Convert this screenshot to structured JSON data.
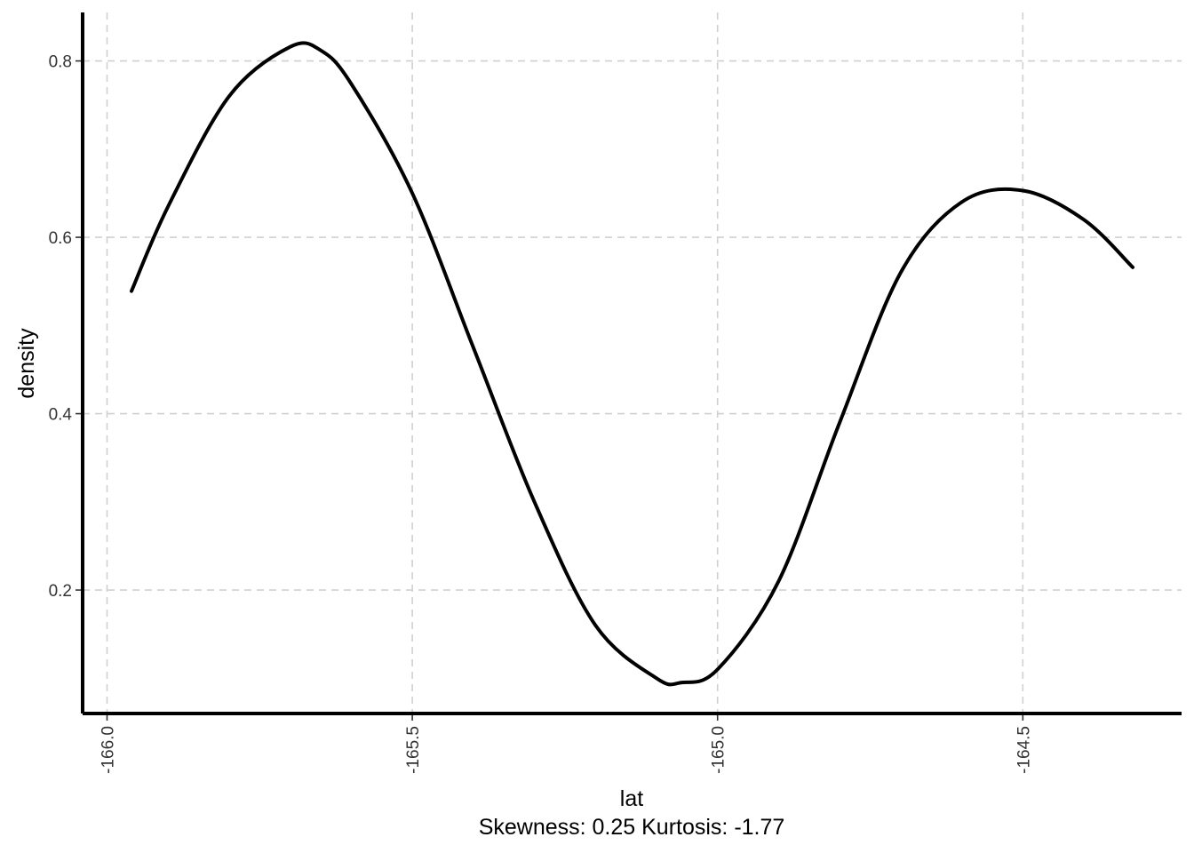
{
  "chart_data": {
    "type": "line",
    "xlabel": "lat",
    "ylabel": "density",
    "caption": "Skewness: 0.25 Kurtosis: -1.77",
    "xlim": [
      -166.04,
      -164.24
    ],
    "ylim": [
      0.06,
      0.855
    ],
    "x_ticks": [
      -166.0,
      -165.5,
      -165.0,
      -164.5
    ],
    "x_tick_labels": [
      "-166.0",
      "-165.5",
      "-165.0",
      "-164.5"
    ],
    "y_ticks": [
      0.2,
      0.4,
      0.6,
      0.8
    ],
    "y_tick_labels": [
      "0.2",
      "0.4",
      "0.6",
      "0.8"
    ],
    "grid": true,
    "series": [
      {
        "color": "#000000",
        "x": [
          -165.96,
          -165.9,
          -165.8,
          -165.7,
          -165.65,
          -165.6,
          -165.5,
          -165.4,
          -165.3,
          -165.2,
          -165.1,
          -165.06,
          -165.0,
          -164.9,
          -164.8,
          -164.7,
          -164.6,
          -164.5,
          -164.4,
          -164.32
        ],
        "y": [
          0.539,
          0.635,
          0.76,
          0.816,
          0.812,
          0.774,
          0.65,
          0.475,
          0.3,
          0.16,
          0.1,
          0.095,
          0.11,
          0.21,
          0.39,
          0.56,
          0.64,
          0.653,
          0.62,
          0.566
        ]
      }
    ]
  }
}
